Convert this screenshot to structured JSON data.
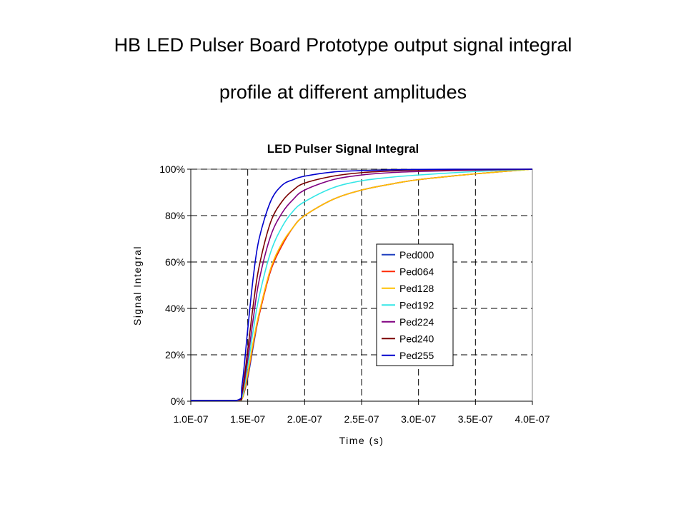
{
  "slide": {
    "title_line1": "HB LED Pulser Board Prototype output signal integral",
    "title_line2": "profile at different amplitudes"
  },
  "chart_data": {
    "type": "line",
    "title": "LED Pulser Signal Integral",
    "xlabel": "Time (s)",
    "ylabel": "Signal Integral",
    "xlim": [
      1e-07,
      4e-07
    ],
    "ylim": [
      0,
      100
    ],
    "x_ticks": [
      "1.0E-07",
      "1.5E-07",
      "2.0E-07",
      "2.5E-07",
      "3.0E-07",
      "3.5E-07",
      "4.0E-07"
    ],
    "x_tick_values": [
      1e-07,
      1.5e-07,
      2e-07,
      2.5e-07,
      3e-07,
      3.5e-07,
      4e-07
    ],
    "y_ticks": [
      "0%",
      "20%",
      "40%",
      "60%",
      "80%",
      "100%"
    ],
    "y_tick_values": [
      0,
      20,
      40,
      60,
      80,
      100
    ],
    "grid": true,
    "legend_position": "center-right",
    "x": [
      1e-07,
      1.4e-07,
      1.45e-07,
      1.5e-07,
      1.55e-07,
      1.6e-07,
      1.7e-07,
      1.8e-07,
      1.9e-07,
      2e-07,
      2.25e-07,
      2.5e-07,
      2.75e-07,
      3e-07,
      3.5e-07,
      4e-07
    ],
    "series": [
      {
        "name": "Ped000",
        "color": "#1f3fbf",
        "values": [
          0.3,
          0.3,
          1,
          10,
          24,
          37,
          56,
          67,
          75,
          80,
          87,
          91,
          93.5,
          95.5,
          98,
          100
        ]
      },
      {
        "name": "Ped064",
        "color": "#ff2a00",
        "values": [
          0.3,
          0.3,
          1,
          11,
          25,
          37,
          56,
          67,
          75,
          80,
          87,
          91,
          93.5,
          95.5,
          98,
          100
        ]
      },
      {
        "name": "Ped128",
        "color": "#ffc000",
        "values": [
          0.3,
          0.3,
          1,
          12,
          26,
          38,
          57,
          68,
          75,
          80,
          87,
          91,
          93.5,
          95.5,
          98,
          100
        ]
      },
      {
        "name": "Ped192",
        "color": "#33e6e6",
        "values": [
          0.3,
          0.3,
          2,
          15,
          31,
          45,
          64,
          75,
          82,
          86,
          92,
          95,
          96.5,
          97.5,
          99,
          100
        ]
      },
      {
        "name": "Ped224",
        "color": "#800080",
        "values": [
          0.3,
          0.3,
          3,
          18,
          36,
          52,
          71,
          81,
          87,
          91,
          95.5,
          97.5,
          98.5,
          99,
          99.6,
          100
        ]
      },
      {
        "name": "Ped240",
        "color": "#7a0000",
        "values": [
          0.3,
          0.3,
          4,
          22,
          42,
          58,
          77,
          86,
          91,
          94,
          97,
          98.5,
          99.2,
          99.6,
          99.9,
          100
        ]
      },
      {
        "name": "Ped255",
        "color": "#0000cc",
        "values": [
          0.3,
          0.3,
          7,
          31,
          54,
          70,
          86,
          93,
          95.5,
          97,
          98.8,
          99.4,
          99.7,
          99.9,
          100,
          100
        ]
      }
    ]
  }
}
